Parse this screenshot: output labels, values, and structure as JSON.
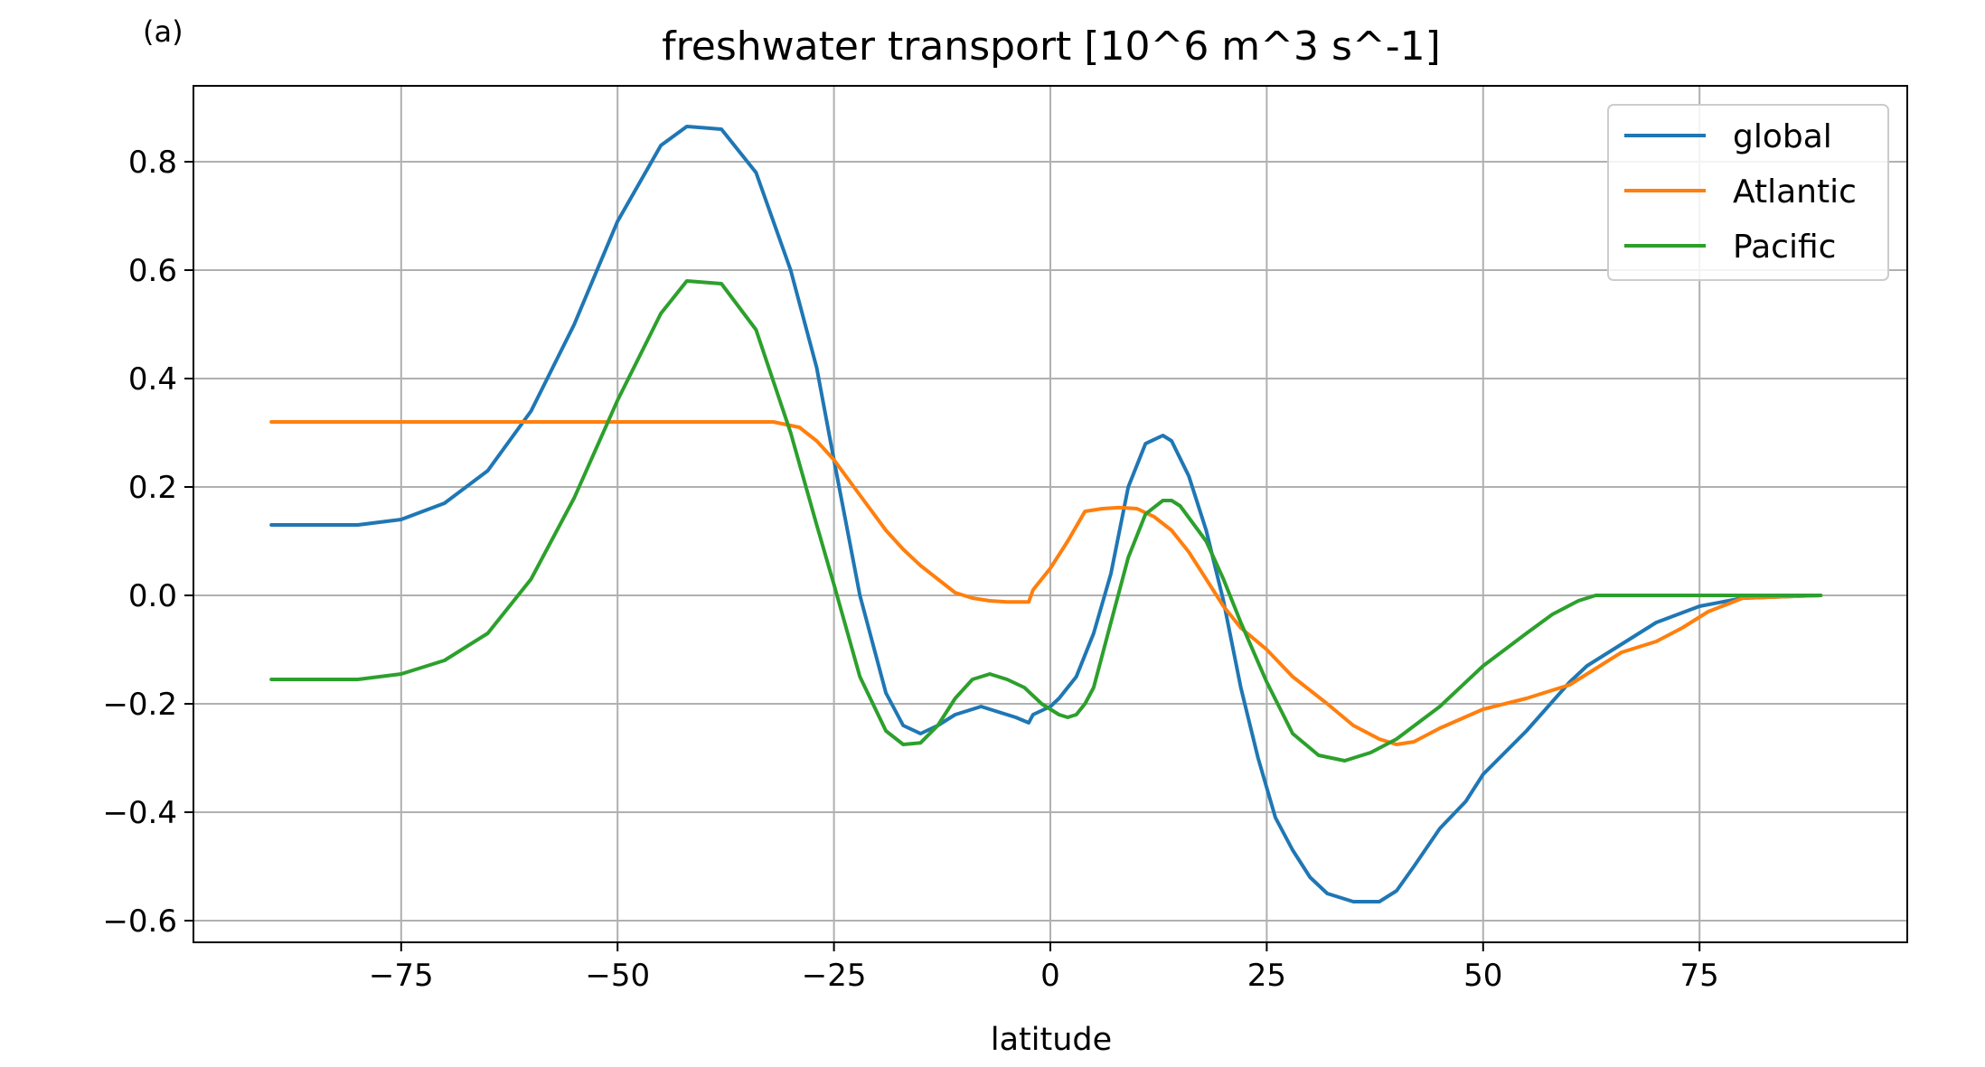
{
  "chart_data": {
    "type": "line",
    "panel_label": "(a)",
    "title": "freshwater transport [10^6 m^3 s^-1]",
    "xlabel": "latitude",
    "ylabel": "",
    "xlim": [
      -99,
      99
    ],
    "ylim": [
      -0.64,
      0.94
    ],
    "xticks": [
      -75,
      -50,
      -25,
      0,
      25,
      50,
      75
    ],
    "xtick_labels": [
      "−75",
      "−50",
      "−25",
      "0",
      "25",
      "50",
      "75"
    ],
    "yticks": [
      0.8,
      0.6,
      0.4,
      0.2,
      0.0,
      -0.2,
      -0.4,
      -0.6
    ],
    "ytick_labels": [
      "0.8",
      "0.6",
      "0.4",
      "0.2",
      "0.0",
      "−0.2",
      "−0.4",
      "−0.6"
    ],
    "grid": true,
    "legend_position": "top-right",
    "series": [
      {
        "name": "global",
        "color": "#1f77b4",
        "x": [
          -90,
          -80,
          -75,
          -70,
          -65,
          -60,
          -55,
          -50,
          -45,
          -42,
          -38,
          -34,
          -30,
          -27,
          -25,
          -22,
          -19,
          -17,
          -15,
          -13,
          -11,
          -8,
          -6,
          -4,
          -2.5,
          -2,
          0,
          1,
          3,
          5,
          7,
          9,
          11,
          13,
          14,
          16,
          18,
          20,
          22,
          24,
          26,
          28,
          30,
          32,
          35,
          38,
          40,
          42,
          45,
          48,
          50,
          55,
          60,
          62,
          65,
          70,
          75,
          80,
          89
        ],
        "y": [
          0.13,
          0.13,
          0.14,
          0.17,
          0.23,
          0.34,
          0.5,
          0.69,
          0.83,
          0.865,
          0.86,
          0.78,
          0.6,
          0.42,
          0.25,
          0.0,
          -0.18,
          -0.24,
          -0.255,
          -0.24,
          -0.22,
          -0.205,
          -0.215,
          -0.225,
          -0.235,
          -0.22,
          -0.205,
          -0.19,
          -0.15,
          -0.07,
          0.04,
          0.2,
          0.28,
          0.295,
          0.285,
          0.22,
          0.12,
          -0.01,
          -0.17,
          -0.3,
          -0.41,
          -0.47,
          -0.52,
          -0.55,
          -0.565,
          -0.565,
          -0.545,
          -0.5,
          -0.43,
          -0.38,
          -0.33,
          -0.25,
          -0.16,
          -0.13,
          -0.1,
          -0.05,
          -0.02,
          -0.005,
          0.0
        ]
      },
      {
        "name": "Atlantic",
        "color": "#ff7f0e",
        "x": [
          -90,
          -80,
          -60,
          -40,
          -32,
          -29,
          -27,
          -25,
          -22,
          -19,
          -17,
          -15,
          -13,
          -11,
          -9,
          -7,
          -5,
          -3,
          -2.5,
          -2,
          0,
          2,
          4,
          6,
          8,
          10,
          12,
          14,
          16,
          18,
          20,
          22,
          25,
          28,
          32,
          35,
          38,
          40,
          42,
          45,
          50,
          55,
          60,
          63,
          66,
          70,
          73,
          76,
          80,
          89
        ],
        "y": [
          0.32,
          0.32,
          0.32,
          0.32,
          0.32,
          0.31,
          0.285,
          0.25,
          0.185,
          0.12,
          0.085,
          0.055,
          0.03,
          0.005,
          -0.005,
          -0.01,
          -0.012,
          -0.012,
          -0.012,
          0.01,
          0.05,
          0.1,
          0.155,
          0.16,
          0.162,
          0.16,
          0.145,
          0.12,
          0.08,
          0.03,
          -0.02,
          -0.06,
          -0.1,
          -0.15,
          -0.2,
          -0.24,
          -0.265,
          -0.275,
          -0.27,
          -0.245,
          -0.21,
          -0.19,
          -0.165,
          -0.135,
          -0.105,
          -0.085,
          -0.06,
          -0.03,
          -0.005,
          0.0
        ]
      },
      {
        "name": "Pacific",
        "color": "#2ca02c",
        "x": [
          -90,
          -80,
          -75,
          -70,
          -65,
          -60,
          -55,
          -50,
          -45,
          -42,
          -38,
          -34,
          -30,
          -27,
          -25,
          -22,
          -19,
          -17,
          -15,
          -13,
          -11,
          -9,
          -7,
          -5,
          -3,
          -1,
          1,
          2,
          3,
          4,
          5,
          7,
          9,
          11,
          13,
          14,
          15,
          18,
          20,
          22,
          25,
          28,
          31,
          34,
          37,
          40,
          45,
          50,
          55,
          58,
          61,
          63,
          70,
          80,
          89
        ],
        "y": [
          -0.155,
          -0.155,
          -0.145,
          -0.12,
          -0.07,
          0.03,
          0.18,
          0.36,
          0.52,
          0.58,
          0.575,
          0.49,
          0.3,
          0.13,
          0.02,
          -0.15,
          -0.25,
          -0.275,
          -0.272,
          -0.24,
          -0.19,
          -0.155,
          -0.145,
          -0.155,
          -0.17,
          -0.2,
          -0.22,
          -0.225,
          -0.22,
          -0.2,
          -0.17,
          -0.05,
          0.07,
          0.15,
          0.175,
          0.175,
          0.165,
          0.1,
          0.03,
          -0.05,
          -0.16,
          -0.255,
          -0.295,
          -0.305,
          -0.29,
          -0.265,
          -0.205,
          -0.13,
          -0.07,
          -0.035,
          -0.01,
          0.0,
          0.0,
          0.0,
          0.0
        ]
      }
    ]
  }
}
